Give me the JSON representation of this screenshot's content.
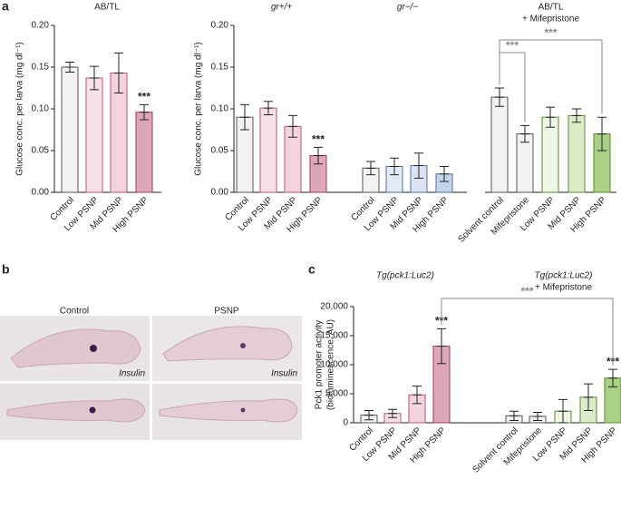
{
  "panel_labels": [
    "a",
    "b",
    "c"
  ],
  "images": {
    "columns": [
      "Control",
      "PSNP"
    ],
    "stain": "Insulin"
  },
  "chart_data": [
    {
      "type": "bar",
      "ylabel": "Glucose conc. per larva (mg dl⁻¹)",
      "ylim": [
        0,
        0.2
      ],
      "yticks": [
        {
          "value": 0,
          "label": "0.00"
        },
        {
          "value": 0.05,
          "label": "0.05"
        },
        {
          "value": 0.1,
          "label": "0.10"
        },
        {
          "value": 0.15,
          "label": "0.15"
        },
        {
          "value": 0.2,
          "label": "0.20"
        }
      ],
      "groups": [
        {
          "title": "AB/TL",
          "categories": [
            "Control",
            "Low PSNP",
            "Mid PSNP",
            "High PSNP"
          ],
          "values": [
            0.15,
            0.137,
            0.143,
            0.096
          ],
          "errors": [
            0.006,
            0.014,
            0.024,
            0.009
          ],
          "colors": [
            "#f2f2f2",
            "#f7e1e8",
            "#f2d3de",
            "#dca7b9"
          ],
          "edge_colors": [
            "#555555",
            "#b5557a",
            "#b5557a",
            "#a3385e"
          ],
          "annotations": [
            null,
            null,
            null,
            "***"
          ]
        }
      ]
    },
    {
      "type": "bar",
      "ylabel": "Glucose conc. per larva (mg dl⁻¹)",
      "ylim": [
        0,
        0.2
      ],
      "yticks": [
        {
          "value": 0,
          "label": "0.00"
        },
        {
          "value": 0.05,
          "label": "0.05"
        },
        {
          "value": 0.1,
          "label": "0.10"
        },
        {
          "value": 0.15,
          "label": "0.15"
        },
        {
          "value": 0.2,
          "label": "0.20"
        }
      ],
      "groups": [
        {
          "title": "gr+/+",
          "categories": [
            "Control",
            "Low PSNP",
            "Mid PSNP",
            "High PSNP"
          ],
          "values": [
            0.09,
            0.101,
            0.079,
            0.044
          ],
          "errors": [
            0.015,
            0.008,
            0.013,
            0.01
          ],
          "colors": [
            "#f2f2f2",
            "#f7e1e8",
            "#f2d3de",
            "#dca7b9"
          ],
          "edge_colors": [
            "#555555",
            "#b5557a",
            "#b5557a",
            "#a3385e"
          ],
          "annotations": [
            null,
            null,
            null,
            "***"
          ]
        },
        {
          "title": "gr−/−",
          "categories": [
            "Control",
            "Low PSNP",
            "Mid PSNP",
            "High PSNP"
          ],
          "values": [
            0.029,
            0.031,
            0.032,
            0.022
          ],
          "errors": [
            0.008,
            0.01,
            0.015,
            0.009
          ],
          "colors": [
            "#f2f2f2",
            "#e3eaf4",
            "#dbe4f1",
            "#c6d4ea"
          ],
          "edge_colors": [
            "#555555",
            "#4a6fa5",
            "#4a6fa5",
            "#4a6fa5"
          ],
          "annotations": [
            null,
            null,
            null,
            null
          ]
        }
      ]
    },
    {
      "type": "bar",
      "ylim": [
        0,
        0.2
      ],
      "groups": [
        {
          "title": "AB/TL",
          "subtitle": "+ Mifepristone",
          "categories": [
            "Solvent control",
            "Mifepristone",
            "Low PSNP",
            "Mid PSNP",
            "High PSNP"
          ],
          "values": [
            0.114,
            0.07,
            0.09,
            0.092,
            0.07
          ],
          "errors": [
            0.011,
            0.01,
            0.012,
            0.008,
            0.02
          ],
          "colors": [
            "#f2f2f2",
            "#f2f2f2",
            "#eef6e6",
            "#dcecca",
            "#a9d085"
          ],
          "edge_colors": [
            "#555555",
            "#555555",
            "#5b8a2e",
            "#5b8a2e",
            "#5b8a2e"
          ],
          "annotations": [
            null,
            null,
            null,
            null,
            null
          ]
        }
      ],
      "comparisons": [
        "***",
        "***"
      ]
    },
    {
      "type": "bar",
      "ylabel": [
        "Pck1 promoter activity",
        "(bioluminescence, AU)"
      ],
      "ylim": [
        0,
        20000
      ],
      "yticks": [
        0,
        {
          "value": 5000,
          "label": "5,000"
        },
        {
          "value": 10000,
          "label": "10,000"
        },
        {
          "value": 15000,
          "label": "15,000"
        },
        {
          "value": 20000,
          "label": "20,000"
        }
      ],
      "groups": [
        {
          "title": "Tg(pck1:Luc2)",
          "categories": [
            "Control",
            "Low PSNP",
            "Mid PSNP",
            "High PSNP"
          ],
          "values": [
            1300,
            1600,
            4800,
            13200
          ],
          "errors": [
            800,
            700,
            1500,
            3000
          ],
          "colors": [
            "#f2f2f2",
            "#f7e1e8",
            "#f2d3de",
            "#dca7b9"
          ],
          "edge_colors": [
            "#555555",
            "#b5557a",
            "#b5557a",
            "#a3385e"
          ],
          "annotations": [
            null,
            null,
            null,
            "***"
          ]
        },
        {
          "title": "Tg(pck1:Luc2)",
          "subtitle": "+ Mifepristone",
          "categories": [
            "Solvent control",
            "Mifepristone",
            "Low PSNP",
            "Mid PSNP",
            "High PSNP"
          ],
          "values": [
            1200,
            1100,
            2000,
            4400,
            7700
          ],
          "errors": [
            800,
            700,
            2000,
            2300,
            1500
          ],
          "colors": [
            "#f2f2f2",
            "#f2f2f2",
            "#eef6e6",
            "#dcecca",
            "#a9d085"
          ],
          "edge_colors": [
            "#555555",
            "#555555",
            "#5b8a2e",
            "#5b8a2e",
            "#5b8a2e"
          ],
          "annotations": [
            null,
            null,
            null,
            null,
            "***"
          ]
        }
      ],
      "comparisons": [
        "***"
      ]
    }
  ]
}
